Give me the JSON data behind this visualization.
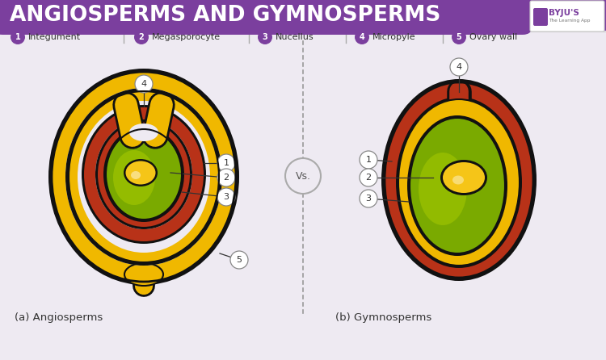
{
  "title": "ANGIOSPERMS AND GYMNOSPERMS",
  "title_bg": "#7B3F9E",
  "title_color": "#FFFFFF",
  "bg_color": "#EEEAF2",
  "legend_items": [
    {
      "num": "1",
      "label": "Integument"
    },
    {
      "num": "2",
      "label": "Megasporocyte"
    },
    {
      "num": "3",
      "label": "Nucellus"
    },
    {
      "num": "4",
      "label": "Micropyle"
    },
    {
      "num": "5",
      "label": "Ovary wall"
    }
  ],
  "label_a": "(a) Angiosperms",
  "label_b": "(b) Gymnosperms",
  "vs_text": "Vs.",
  "purple": "#7B3F9E",
  "dark_outline": "#111111",
  "yellow": "#F0B800",
  "red_brown": "#B83218",
  "green_dark": "#7AAA00",
  "green_light": "#AACC00",
  "yellow_dot": "#F5C518",
  "line_color": "#333333",
  "circle_fill": "#FFFFFF",
  "circle_edge": "#888888"
}
